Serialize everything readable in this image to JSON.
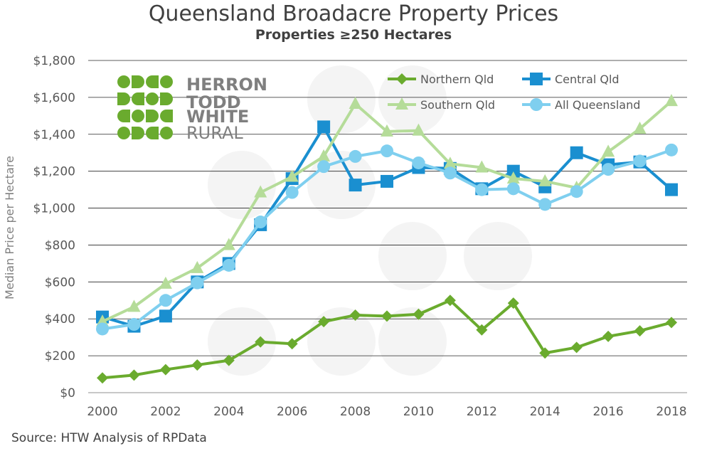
{
  "chart_data": {
    "type": "line",
    "title": "Queensland Broadacre Property Prices",
    "subtitle": "Properties ≥250 Hectares",
    "ylabel": "Median Price per Hectare",
    "xlabel": "",
    "ylim": [
      0,
      1800
    ],
    "yticks": [
      "$0",
      "$200",
      "$400",
      "$600",
      "$800",
      "$1,000",
      "$1,200",
      "$1,400",
      "$1,600",
      "$1,800"
    ],
    "ytick_values": [
      0,
      200,
      400,
      600,
      800,
      1000,
      1200,
      1400,
      1600,
      1800
    ],
    "xticks": [
      "2000",
      "2002",
      "2004",
      "2006",
      "2008",
      "2010",
      "2012",
      "2014",
      "2016",
      "2018"
    ],
    "xtick_values": [
      2000,
      2002,
      2004,
      2006,
      2008,
      2010,
      2012,
      2014,
      2016,
      2018
    ],
    "x": [
      2000,
      2001,
      2002,
      2003,
      2004,
      2005,
      2006,
      2007,
      2008,
      2009,
      2010,
      2011,
      2012,
      2013,
      2014,
      2015,
      2016,
      2017,
      2018
    ],
    "grid": "horizontal",
    "legend_position": "top-right",
    "series": [
      {
        "name": "Northern Qld",
        "color": "#6aab2e",
        "marker": "diamond",
        "values": [
          80,
          95,
          125,
          150,
          175,
          275,
          265,
          385,
          420,
          415,
          425,
          500,
          340,
          485,
          215,
          245,
          305,
          335,
          380
        ]
      },
      {
        "name": "Central Qld",
        "color": "#1a8fd0",
        "marker": "square",
        "values": [
          410,
          360,
          415,
          600,
          700,
          910,
          1160,
          1440,
          1125,
          1145,
          1220,
          1215,
          1105,
          1200,
          1115,
          1300,
          1235,
          1250,
          1100
        ]
      },
      {
        "name": "Southern Qld",
        "color": "#b5dc99",
        "marker": "triangle",
        "values": [
          385,
          465,
          590,
          675,
          800,
          1085,
          1170,
          1280,
          1565,
          1415,
          1420,
          1240,
          1220,
          1160,
          1145,
          1110,
          1305,
          1430,
          1580
        ]
      },
      {
        "name": "All Queensland",
        "color": "#7fcfef",
        "marker": "circle",
        "values": [
          345,
          370,
          500,
          595,
          690,
          925,
          1085,
          1225,
          1280,
          1310,
          1245,
          1190,
          1100,
          1105,
          1020,
          1090,
          1210,
          1255,
          1315
        ]
      }
    ]
  },
  "logo": {
    "line1": "HERRON",
    "line2": "TODD",
    "line3": "WHITE",
    "line4": "RURAL",
    "color": "#6aab2e"
  },
  "source": "Source: HTW Analysis of RPData"
}
